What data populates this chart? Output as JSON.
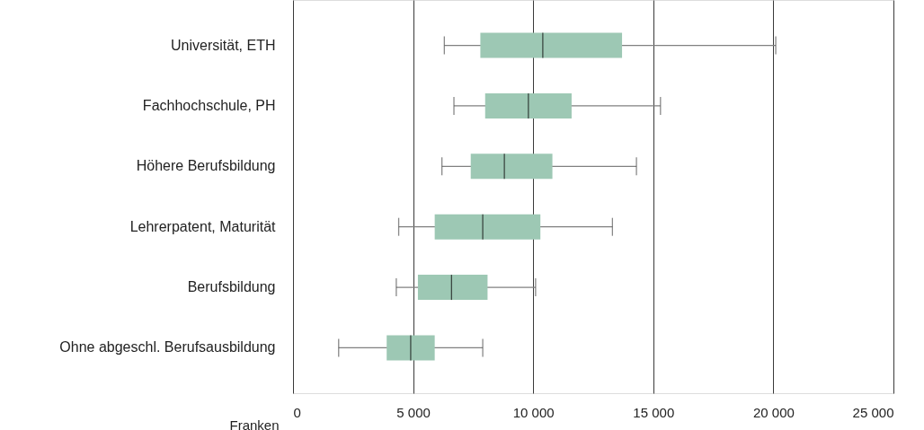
{
  "chart_data": {
    "type": "box",
    "orientation": "horizontal",
    "xlabel": "Franken",
    "categories": [
      "Universität, ETH",
      "Fachhochschule, PH",
      "Höhere Berufsbildung",
      "Lehrerpatent, Maturität",
      "Berufsbildung",
      "Ohne abgeschl. Berufsausbildung"
    ],
    "series": [
      {
        "color": "#9dc8b4",
        "boxes": [
          {
            "low": 6300,
            "q1": 7800,
            "median": 10400,
            "q3": 13700,
            "high": 20100
          },
          {
            "low": 6700,
            "q1": 8000,
            "median": 9800,
            "q3": 11600,
            "high": 15300
          },
          {
            "low": 6200,
            "q1": 7400,
            "median": 8800,
            "q3": 10800,
            "high": 14300
          },
          {
            "low": 4400,
            "q1": 5900,
            "median": 7900,
            "q3": 10300,
            "high": 13300
          },
          {
            "low": 4300,
            "q1": 5200,
            "median": 6600,
            "q3": 8100,
            "high": 10100
          },
          {
            "low": 1900,
            "q1": 3900,
            "median": 4900,
            "q3": 5900,
            "high": 7900
          }
        ]
      }
    ],
    "xlim": [
      0,
      25000
    ],
    "xticks": [
      0,
      {
        "value": 5000,
        "label": "5 000"
      },
      {
        "value": 10000,
        "label": "10 000"
      },
      {
        "value": 15000,
        "label": "15 000"
      },
      {
        "value": 20000,
        "label": "20 000"
      },
      {
        "value": 25000,
        "label": "25 000"
      }
    ],
    "grid": "x"
  }
}
